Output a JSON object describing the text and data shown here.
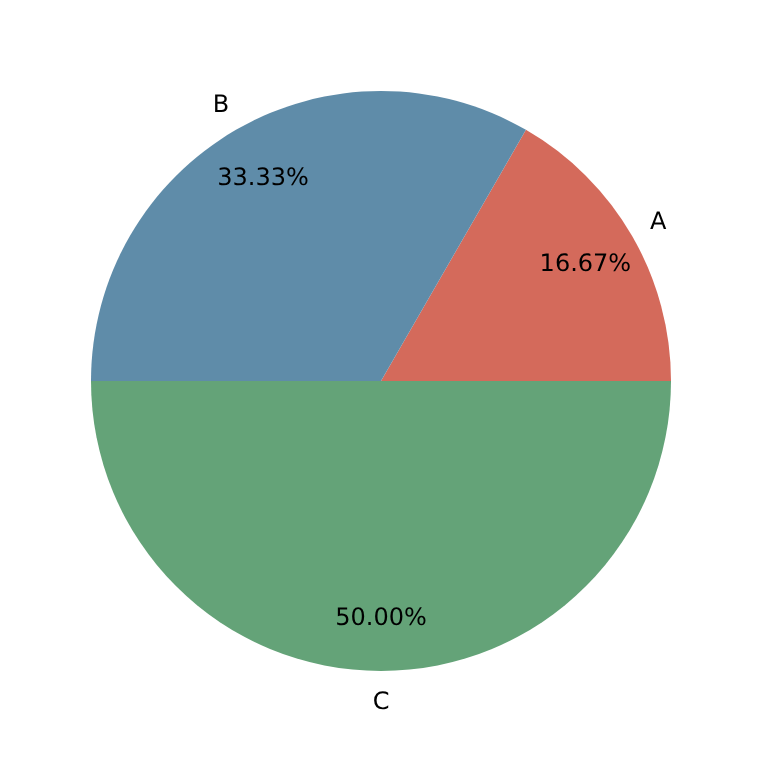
{
  "chart_data": {
    "type": "pie",
    "categories": [
      "A",
      "B",
      "C"
    ],
    "values": [
      16.67,
      33.33,
      50.0
    ],
    "colors": [
      "#d46a5b",
      "#5f8ca9",
      "#64a378"
    ],
    "value_labels": [
      "16.67%",
      "33.33%",
      "50.00%"
    ],
    "legend": false
  }
}
